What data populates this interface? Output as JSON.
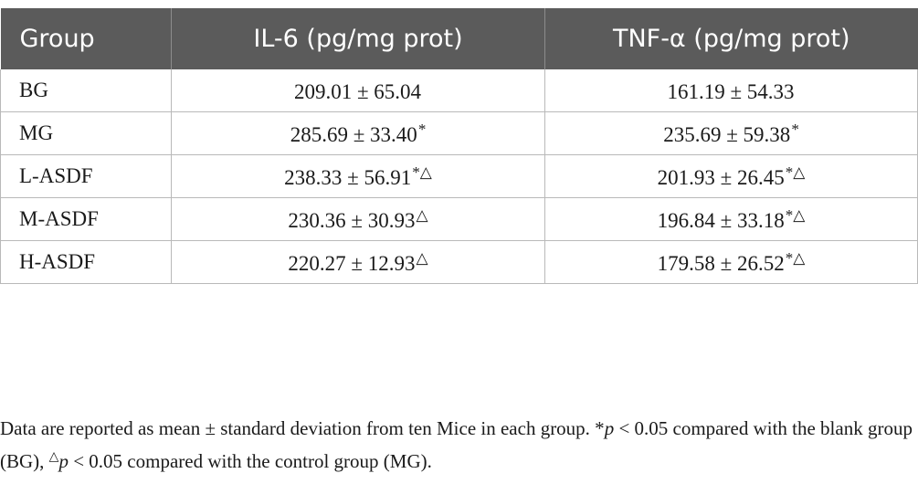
{
  "table": {
    "headers": [
      "Group",
      "IL-6 (pg/mg prot)",
      "TNF-α (pg/mg prot)"
    ],
    "rows": [
      {
        "group": "BG",
        "il6": "209.01 ± 65.04",
        "il6_mark": "",
        "tnf": "161.19 ± 54.33",
        "tnf_mark": ""
      },
      {
        "group": "MG",
        "il6": "285.69 ± 33.40",
        "il6_mark": "*",
        "tnf": "235.69 ± 59.38",
        "tnf_mark": "*"
      },
      {
        "group": "L-ASDF",
        "il6": "238.33 ± 56.91",
        "il6_mark": "*△",
        "tnf": "201.93 ± 26.45",
        "tnf_mark": "*△"
      },
      {
        "group": "M-ASDF",
        "il6": "230.36 ± 30.93",
        "il6_mark": "△",
        "tnf": "196.84 ± 33.18",
        "tnf_mark": "*△"
      },
      {
        "group": "H-ASDF",
        "il6": "220.27 ± 12.93",
        "il6_mark": "△",
        "tnf": "179.58 ± 26.52",
        "tnf_mark": "*△"
      }
    ]
  },
  "footnote": {
    "part1": "Data are reported as mean ± standard deviation from ten Mice in each group. *",
    "p1": "p",
    "part2": " < 0.05 compared with the blank group (BG), ",
    "tri": "△",
    "p2": "p",
    "part3": " < 0.05 compared with the control group (MG)."
  }
}
